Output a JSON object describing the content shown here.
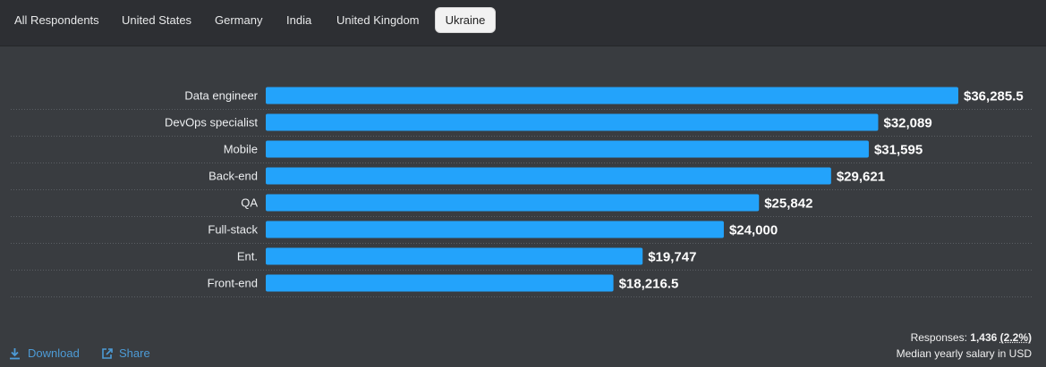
{
  "tabs": [
    {
      "label": "All Respondents",
      "active": false
    },
    {
      "label": "United States",
      "active": false
    },
    {
      "label": "Germany",
      "active": false
    },
    {
      "label": "India",
      "active": false
    },
    {
      "label": "United Kingdom",
      "active": false
    },
    {
      "label": "Ukraine",
      "active": true
    }
  ],
  "chart_data": {
    "type": "bar",
    "orientation": "horizontal",
    "categories": [
      "Data engineer",
      "DevOps specialist",
      "Mobile",
      "Back-end",
      "QA",
      "Full-stack",
      "Ent.",
      "Front-end"
    ],
    "values": [
      36285.5,
      32089,
      31595,
      29621,
      25842,
      24000,
      19747,
      18216.5
    ],
    "value_labels": [
      "$36,285.5",
      "$32,089",
      "$31,595",
      "$29,621",
      "$25,842",
      "$24,000",
      "$19,747",
      "$18,216.5"
    ],
    "bar_color": "#23a3fb",
    "title": "",
    "xlabel": "",
    "ylabel": "",
    "xlim": [
      0,
      36285.5
    ],
    "grid": false
  },
  "footer": {
    "download_label": "Download",
    "share_label": "Share",
    "responses_label": "Responses:",
    "responses_count": "1,436",
    "responses_pct": "(2.2%)",
    "caption": "Median yearly salary in USD"
  },
  "colors": {
    "background": "#393c40",
    "tabbar": "#2d2f33",
    "link": "#4d9bd6",
    "text": "#e7e9eb"
  }
}
